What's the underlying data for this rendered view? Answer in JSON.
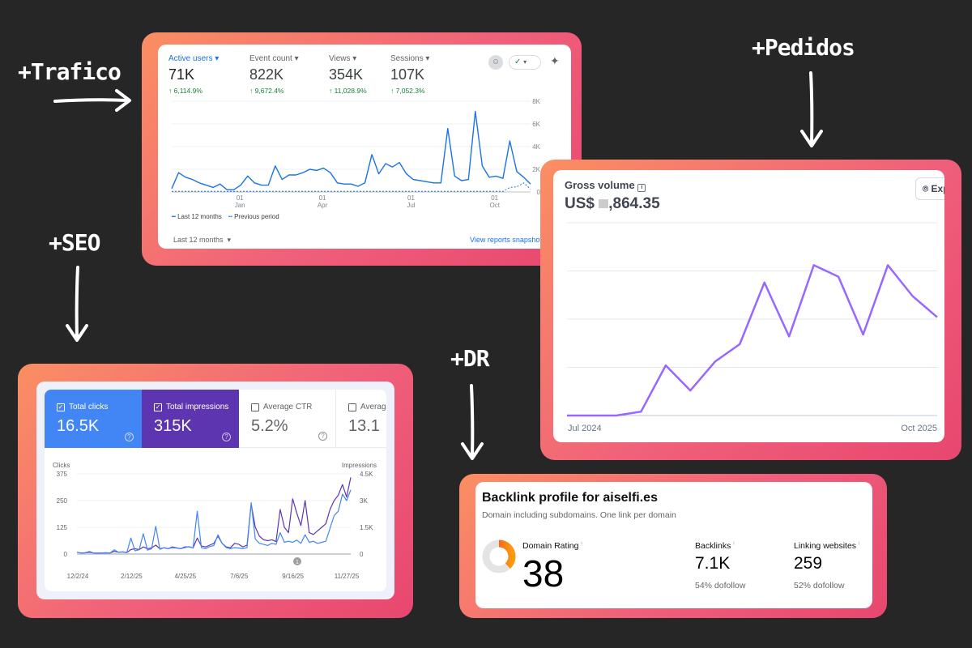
{
  "labels": {
    "traffic": "+Trafico",
    "orders": "+Pedidos",
    "seo": "+SEO",
    "dr": "+DR"
  },
  "colors": {
    "frame_start": "#fb8f63",
    "frame_end": "#e8476f",
    "ga_blue": "#1a73e8",
    "stripe_purple": "#9966ff",
    "gsc_blue": "#4285f4",
    "gsc_purple": "#5e35b1",
    "dr_orange": "#f46a2a"
  },
  "ga": {
    "metrics": [
      {
        "label": "Active users",
        "value": "71K",
        "change": "6,114.9%"
      },
      {
        "label": "Event count",
        "value": "822K",
        "change": "9,672.4%"
      },
      {
        "label": "Views",
        "value": "354K",
        "change": "11,028.9%"
      },
      {
        "label": "Sessions",
        "value": "107K",
        "change": "7,052.3%"
      }
    ],
    "legend_current": "Last 12 months",
    "legend_previous": "Previous period",
    "date_range": "Last 12 months",
    "view_link": "View reports snapshot"
  },
  "stripe": {
    "title": "Gross volume",
    "amount_prefix": "US$",
    "amount_suffix": ",864.35",
    "button": "Explore"
  },
  "gsc": {
    "tiles": [
      {
        "label": "Total clicks",
        "value": "16.5K",
        "checked": true
      },
      {
        "label": "Total impressions",
        "value": "315K",
        "checked": true
      },
      {
        "label": "Average CTR",
        "value": "5.2%",
        "checked": false
      },
      {
        "label": "Average position",
        "value": "13.1",
        "checked": false
      }
    ],
    "annotation": "1"
  },
  "backlinks": {
    "title": "Backlink profile for aiselfi.es",
    "subtitle": "Domain including subdomains. One link per domain",
    "dr_label": "Domain Rating",
    "dr_value": "38",
    "dr_score": 38,
    "backlinks_label": "Backlinks",
    "backlinks_value": "7.1K",
    "backlinks_sub": "54% dofollow",
    "linking_label": "Linking websites",
    "linking_value": "259",
    "linking_sub": "52% dofollow",
    "info": "i"
  },
  "chart_data": [
    {
      "id": "ga",
      "type": "line",
      "title": "Active users",
      "ylim": [
        0,
        8000
      ],
      "yticks": [
        "0",
        "2K",
        "4K",
        "6K",
        "8K"
      ],
      "xticks": [
        {
          "day": "01",
          "month": "Jan",
          "pos": 0.19
        },
        {
          "day": "01",
          "month": "Apr",
          "pos": 0.42
        },
        {
          "day": "01",
          "month": "Jul",
          "pos": 0.667
        },
        {
          "day": "01",
          "month": "Oct",
          "pos": 0.9
        }
      ],
      "series": [
        {
          "name": "Last 12 months",
          "values": [
            300,
            1700,
            1300,
            1100,
            800,
            600,
            400,
            700,
            200,
            200,
            600,
            1400,
            800,
            600,
            600,
            2300,
            1100,
            1500,
            1500,
            1700,
            2000,
            1900,
            2100,
            1700,
            800,
            700,
            700,
            500,
            800,
            3300,
            1600,
            2500,
            2200,
            2600,
            1600,
            1100,
            1000,
            900,
            800,
            800,
            5600,
            1400,
            1000,
            1100,
            7100,
            2300,
            1300,
            1400,
            1200,
            4500,
            1800,
            1300,
            700
          ]
        },
        {
          "name": "Previous period",
          "values": [
            50,
            50,
            50,
            50,
            50,
            50,
            50,
            50,
            50,
            50,
            50,
            50,
            50,
            50,
            50,
            50,
            50,
            50,
            50,
            50,
            50,
            50,
            50,
            50,
            50,
            50,
            50,
            50,
            50,
            50,
            50,
            50,
            50,
            50,
            50,
            50,
            50,
            50,
            50,
            50,
            50,
            50,
            50,
            50,
            50,
            50,
            50,
            50,
            50,
            400,
            450,
            800,
            250
          ]
        }
      ]
    },
    {
      "id": "stripe",
      "type": "line",
      "title": "Gross volume",
      "xlabels": [
        "Jul 2024",
        "Oct 2025"
      ],
      "ylim": [
        0,
        100
      ],
      "series": [
        {
          "name": "Gross volume (relative)",
          "values": [
            0,
            0,
            0,
            2,
            26,
            13,
            28,
            37,
            69,
            41,
            78,
            72,
            42,
            78,
            62,
            51
          ]
        }
      ]
    },
    {
      "id": "gsc",
      "type": "line",
      "ylabel_left": "Clicks",
      "ylabel_right": "Impressions",
      "yticks_left": [
        "0",
        "125",
        "250",
        "375"
      ],
      "yticks_right": [
        "0",
        "1.5K",
        "3K",
        "4.5K"
      ],
      "ylim_left": [
        0,
        375
      ],
      "ylim_right": [
        0,
        4500
      ],
      "xticks": [
        "12/2/24",
        "2/12/25",
        "4/25/25",
        "7/6/25",
        "9/16/25",
        "11/27/25"
      ],
      "series": [
        {
          "name": "Clicks",
          "axis": "left",
          "values": [
            8,
            5,
            6,
            12,
            5,
            4,
            5,
            6,
            5,
            20,
            8,
            10,
            6,
            75,
            15,
            20,
            95,
            18,
            25,
            130,
            22,
            30,
            25,
            30,
            28,
            25,
            30,
            35,
            28,
            200,
            30,
            25,
            35,
            40,
            90,
            50,
            30,
            25,
            30,
            28,
            25,
            30,
            240,
            70,
            50,
            45,
            40,
            50,
            45,
            100,
            55,
            60,
            55,
            65,
            50,
            90,
            55,
            60,
            50,
            55,
            60,
            120,
            180,
            200,
            280,
            250,
            300
          ]
        },
        {
          "name": "Impressions",
          "axis": "right",
          "values": [
            100,
            60,
            70,
            100,
            60,
            50,
            60,
            70,
            60,
            150,
            100,
            120,
            80,
            250,
            300,
            250,
            400,
            300,
            350,
            500,
            300,
            350,
            300,
            400,
            350,
            300,
            400,
            400,
            350,
            900,
            450,
            400,
            500,
            600,
            1000,
            600,
            400,
            350,
            600,
            550,
            400,
            500,
            2800,
            1500,
            1000,
            800,
            750,
            800,
            700,
            2500,
            1500,
            1200,
            3100,
            2300,
            1600,
            3000,
            1200,
            1100,
            1300,
            1500,
            1700,
            2500,
            3000,
            3300,
            3900,
            3200,
            4300
          ]
        }
      ]
    }
  ]
}
